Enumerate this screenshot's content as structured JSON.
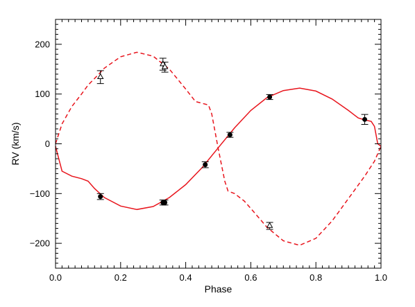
{
  "chart_data": {
    "type": "scatter",
    "title": "",
    "xlabel": "Phase",
    "ylabel": "RV (km/s)",
    "xlim": [
      0.0,
      1.0
    ],
    "ylim": [
      -250,
      250
    ],
    "x_ticks": [
      0.0,
      0.2,
      0.4,
      0.6,
      0.8,
      1.0
    ],
    "x_tick_labels": [
      "0.0",
      "0.2",
      "0.4",
      "0.6",
      "0.8",
      "1.0"
    ],
    "y_ticks": [
      -200,
      -100,
      0,
      100,
      200
    ],
    "y_tick_labels": [
      "−200",
      "−100",
      "0",
      "100",
      "200"
    ],
    "grid": false,
    "legend": "none",
    "colors": {
      "model": "#e8141c",
      "data": "#000000"
    },
    "series": [
      {
        "marker": "filled-circle",
        "points": [
          {
            "x": 0.138,
            "y": -106,
            "err": 6
          },
          {
            "x": 0.33,
            "y": -118,
            "err": 5
          },
          {
            "x": 0.336,
            "y": -118,
            "err": 5
          },
          {
            "x": 0.46,
            "y": -42,
            "err": 6
          },
          {
            "x": 0.536,
            "y": 18,
            "err": 5
          },
          {
            "x": 0.658,
            "y": 94,
            "err": 5
          },
          {
            "x": 0.95,
            "y": 49,
            "err": 10
          }
        ]
      },
      {
        "marker": "open-triangle",
        "points": [
          {
            "x": 0.138,
            "y": 134,
            "err": 13
          },
          {
            "x": 0.33,
            "y": 160,
            "err": 12
          },
          {
            "x": 0.336,
            "y": 154,
            "err": 10
          },
          {
            "x": 0.658,
            "y": -165,
            "err": 7
          }
        ]
      },
      {
        "style": "solid-line",
        "x": [
          0.0,
          0.02,
          0.05,
          0.08,
          0.1,
          0.12,
          0.15,
          0.2,
          0.25,
          0.3,
          0.35,
          0.4,
          0.45,
          0.5,
          0.55,
          0.6,
          0.65,
          0.7,
          0.75,
          0.8,
          0.85,
          0.9,
          0.93,
          0.95,
          0.97,
          0.98,
          0.99,
          1.0
        ],
        "y": [
          -5,
          -55,
          -65,
          -70,
          -75,
          -90,
          -108,
          -125,
          -132,
          -126,
          -108,
          -82,
          -48,
          -8,
          32,
          67,
          93,
          107,
          112,
          106,
          90,
          67,
          52,
          48,
          45,
          35,
          0,
          -5
        ]
      },
      {
        "style": "dashed-line",
        "x": [
          0.0,
          0.02,
          0.05,
          0.08,
          0.1,
          0.13,
          0.15,
          0.2,
          0.25,
          0.3,
          0.35,
          0.4,
          0.43,
          0.47,
          0.48,
          0.5,
          0.52,
          0.53,
          0.55,
          0.58,
          0.6,
          0.65,
          0.7,
          0.75,
          0.8,
          0.85,
          0.9,
          0.95,
          0.98,
          1.0
        ],
        "y": [
          0,
          40,
          75,
          100,
          118,
          138,
          152,
          175,
          184,
          176,
          150,
          110,
          85,
          78,
          60,
          -10,
          -75,
          -95,
          -100,
          -115,
          -130,
          -168,
          -195,
          -204,
          -190,
          -155,
          -110,
          -65,
          -35,
          -5
        ]
      }
    ]
  }
}
